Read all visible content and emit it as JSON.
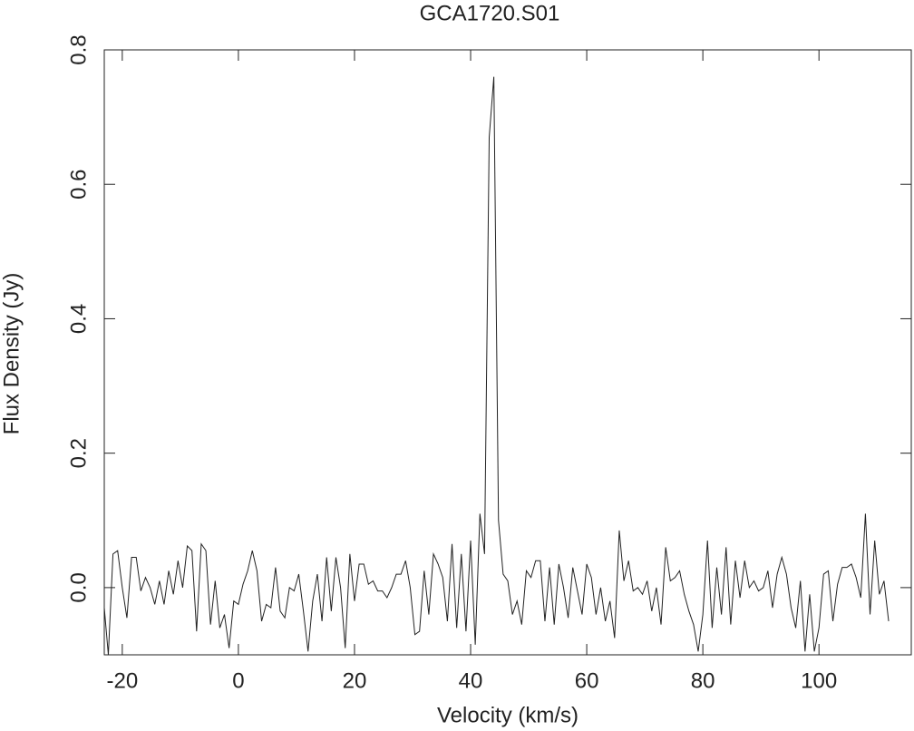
{
  "chart_data": {
    "type": "line",
    "title": "GCA1720.S01",
    "x_label": "Velocity (km/s)",
    "y_label": "Flux Density (Jy)",
    "color": "#222222",
    "xlim": [
      -23.1,
      115.9
    ],
    "xticks": [
      -20,
      0,
      20,
      40,
      60,
      80,
      100
    ],
    "ylim": [
      -0.1,
      0.8
    ],
    "yticks": [
      {
        "value": 0,
        "label": "0.0"
      },
      0.2,
      0.4,
      0.6,
      0.8
    ],
    "grid": false,
    "x": [
      -23.2,
      -22.4,
      -21.6,
      -20.8,
      -20,
      -19.2,
      -18.4,
      -17.6,
      -16.8,
      -16,
      -15.2,
      -14.4,
      -13.6,
      -12.8,
      -12,
      -11.2,
      -10.4,
      -9.6,
      -8.8,
      -8,
      -7.2,
      -6.4,
      -5.6,
      -4.8,
      -4,
      -3.2,
      -2.4,
      -1.6,
      -0.8,
      0,
      0.8,
      1.6,
      2.4,
      3.2,
      4,
      4.8,
      5.6,
      6.4,
      7.2,
      8,
      8.8,
      9.6,
      10.4,
      11.2,
      12,
      12.8,
      13.6,
      14.4,
      15.2,
      16,
      16.8,
      17.6,
      18.4,
      19.2,
      20,
      20.8,
      21.6,
      22.4,
      23.2,
      24,
      24.8,
      25.6,
      26.4,
      27.2,
      28,
      28.8,
      29.6,
      30.4,
      31.2,
      32,
      32.8,
      33.6,
      34.4,
      35.2,
      36,
      36.8,
      37.6,
      38.4,
      39.2,
      40,
      40.8,
      41.6,
      42.4,
      43.2,
      44,
      44.8,
      45.6,
      46.4,
      47.2,
      48,
      48.8,
      49.6,
      50.4,
      51.2,
      52,
      52.8,
      53.6,
      54.4,
      55.2,
      56,
      56.8,
      57.6,
      58.4,
      59.2,
      60,
      60.8,
      61.6,
      62.4,
      63.2,
      64,
      64.8,
      65.6,
      66.4,
      67.2,
      68,
      68.8,
      69.6,
      70.4,
      71.2,
      72,
      72.8,
      73.6,
      74.4,
      75.2,
      76,
      76.8,
      77.6,
      78.4,
      79.2,
      80,
      80.8,
      81.6,
      82.4,
      83.2,
      84,
      84.8,
      85.6,
      86.4,
      87.2,
      88,
      88.8,
      89.6,
      90.4,
      91.2,
      92,
      92.8,
      93.6,
      94.4,
      95.2,
      96,
      96.8,
      97.6,
      98.4,
      99.2,
      100,
      100.8,
      101.6,
      102.4,
      103.2,
      104,
      104.8,
      105.6,
      106.4,
      107.2,
      108,
      108.8,
      109.6,
      110.4,
      111.2,
      112
    ],
    "values": [
      -0.02,
      -0.1,
      0.05,
      0.055,
      0.0,
      -0.045,
      0.045,
      0.045,
      -0.005,
      0.015,
      0.0,
      -0.025,
      0.01,
      -0.025,
      0.025,
      -0.01,
      0.04,
      0.0,
      0.062,
      0.055,
      -0.065,
      0.065,
      0.055,
      -0.055,
      0.01,
      -0.06,
      -0.04,
      -0.09,
      -0.02,
      -0.025,
      0.005,
      0.025,
      0.055,
      0.025,
      -0.05,
      -0.025,
      -0.03,
      0.03,
      -0.035,
      -0.045,
      0.0,
      -0.005,
      0.02,
      -0.035,
      -0.095,
      -0.02,
      0.02,
      -0.05,
      0.045,
      -0.035,
      0.045,
      0.0,
      -0.09,
      0.05,
      -0.02,
      0.035,
      0.035,
      0.005,
      0.01,
      -0.005,
      -0.005,
      -0.015,
      0.0,
      0.02,
      0.02,
      0.04,
      0.0,
      -0.07,
      -0.065,
      0.025,
      -0.04,
      0.05,
      0.035,
      0.015,
      -0.05,
      0.065,
      -0.06,
      0.05,
      -0.065,
      0.07,
      -0.085,
      0.11,
      0.05,
      0.67,
      0.76,
      0.1,
      0.02,
      0.01,
      -0.04,
      -0.02,
      -0.055,
      0.025,
      0.015,
      0.04,
      0.04,
      -0.05,
      0.03,
      -0.055,
      0.035,
      0.0,
      -0.045,
      0.03,
      -0.005,
      -0.04,
      0.035,
      0.015,
      -0.04,
      0.0,
      -0.05,
      -0.02,
      -0.075,
      0.085,
      0.01,
      0.04,
      -0.005,
      0.0,
      -0.01,
      0.01,
      -0.035,
      0.0,
      -0.055,
      0.06,
      0.01,
      0.015,
      0.025,
      -0.01,
      -0.035,
      -0.055,
      -0.095,
      -0.04,
      0.07,
      -0.06,
      0.03,
      -0.04,
      0.06,
      -0.055,
      0.04,
      -0.015,
      0.04,
      0.0,
      0.01,
      -0.005,
      0.0,
      0.025,
      -0.03,
      0.02,
      0.045,
      0.02,
      -0.03,
      -0.06,
      0.01,
      -0.095,
      -0.01,
      -0.095,
      -0.06,
      0.02,
      0.025,
      -0.05,
      0.005,
      0.03,
      0.03,
      0.035,
      0.015,
      -0.015,
      0.11,
      -0.04,
      0.07,
      -0.01,
      0.01,
      -0.05
    ]
  }
}
